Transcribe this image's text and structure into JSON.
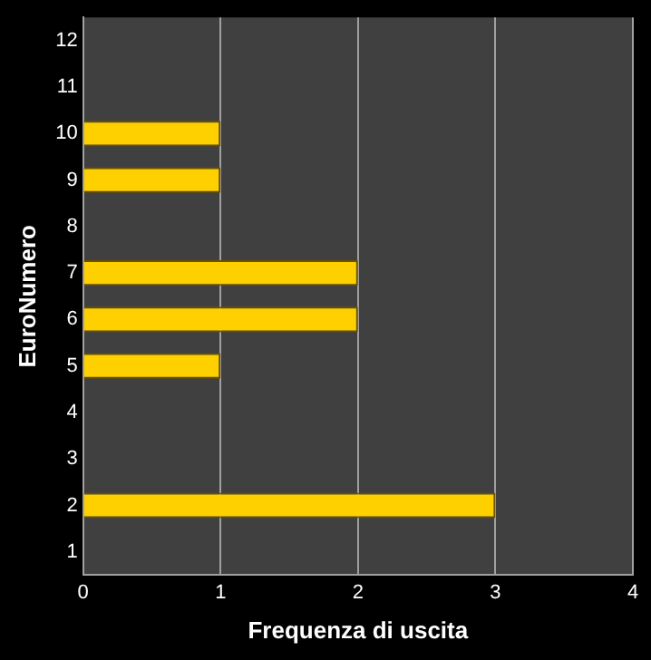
{
  "chart_data": {
    "type": "bar",
    "orientation": "horizontal",
    "xlabel": "Frequenza di uscita",
    "ylabel": "EuroNumero",
    "categories": [
      "12",
      "11",
      "10",
      "9",
      "8",
      "7",
      "6",
      "5",
      "4",
      "3",
      "2",
      "1"
    ],
    "values": [
      0,
      0,
      1,
      1,
      0,
      2,
      2,
      1,
      0,
      0,
      3,
      0
    ],
    "color": "#ffd000",
    "xlim": [
      0,
      4
    ],
    "xticks": [
      0,
      1,
      2,
      3,
      4
    ],
    "grid": "x"
  }
}
